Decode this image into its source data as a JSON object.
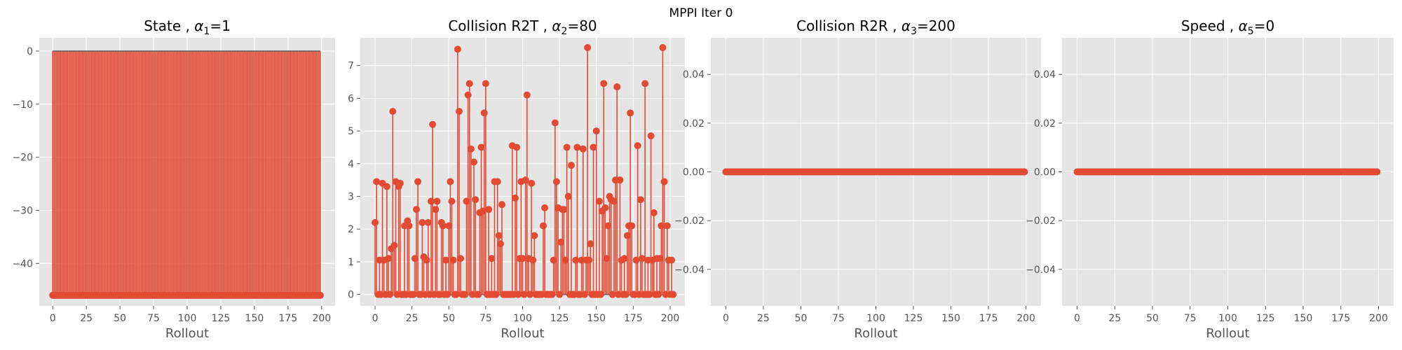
{
  "suptitle": "MPPI Iter 0",
  "colors": {
    "series": "#E24A33",
    "stem_base": "#666666",
    "axes_bg": "#E5E5E5",
    "grid": "#FFFFFF",
    "tick_text": "#555555"
  },
  "chart_data": [
    {
      "type": "stem",
      "title_name": "State , ",
      "title_alpha_sym": "α",
      "title_alpha_sub": "1",
      "title_alpha_val": "=1",
      "xlabel": "Rollout",
      "xlim": [
        -10,
        210
      ],
      "ylim": [
        -48,
        2.5
      ],
      "xticks": [
        0,
        25,
        50,
        75,
        100,
        125,
        150,
        175,
        200
      ],
      "yticks": [
        0,
        -10,
        -20,
        -30,
        -40
      ],
      "ytick_labels": [
        "0",
        "−10",
        "−20",
        "−30",
        "−40"
      ],
      "n_points": 200,
      "constant_value": -46
    },
    {
      "type": "stem",
      "title_name": "Collision R2T , ",
      "title_alpha_sym": "α",
      "title_alpha_sub": "2",
      "title_alpha_val": "=80",
      "xlabel": "Rollout",
      "xlim": [
        -10,
        210
      ],
      "ylim": [
        -0.35,
        7.85
      ],
      "xticks": [
        0,
        25,
        50,
        75,
        100,
        125,
        150,
        175,
        200
      ],
      "yticks": [
        0,
        1,
        2,
        3,
        4,
        5,
        6,
        7
      ],
      "ytick_labels": [
        "0",
        "1",
        "2",
        "3",
        "4",
        "5",
        "6",
        "7"
      ],
      "values": [
        2.2,
        3.45,
        0,
        1.05,
        0,
        3.4,
        1.05,
        0,
        3.3,
        1.1,
        0,
        1.4,
        5.6,
        1.5,
        3.45,
        0,
        3.3,
        3.4,
        0,
        0,
        2.1,
        0,
        2.25,
        2.1,
        0,
        0,
        0,
        1.1,
        2.6,
        3.45,
        0,
        0,
        2.2,
        1.15,
        0,
        1.05,
        2.2,
        0,
        2.85,
        5.2,
        0,
        2.6,
        2.85,
        0,
        0,
        2.2,
        2.1,
        0,
        1.05,
        0,
        2.1,
        3.45,
        2.85,
        1.05,
        0,
        0,
        7.5,
        5.6,
        1.1,
        0,
        0,
        0,
        2.85,
        6.1,
        6.45,
        4.45,
        0,
        4.05,
        2.9,
        0,
        0,
        2.5,
        4.5,
        2.55,
        5.55,
        6.45,
        0,
        2.6,
        0,
        1.1,
        0,
        3.45,
        0,
        3.45,
        1.8,
        1.55,
        2.75,
        0,
        0,
        0,
        0,
        0,
        0,
        4.55,
        0,
        2.95,
        4.5,
        0,
        1.1,
        3.45,
        1.1,
        0,
        3.5,
        6.1,
        1.1,
        0,
        3.4,
        1.05,
        1.8,
        0,
        0,
        0,
        0,
        0,
        2.1,
        2.65,
        0,
        0,
        0,
        0,
        0,
        1.05,
        5.25,
        3.45,
        2.65,
        0,
        1.6,
        2.6,
        2.6,
        1.05,
        4.5,
        3,
        0,
        3.95,
        0,
        0,
        1.05,
        4.5,
        0,
        0,
        1.05,
        4.45,
        0,
        1.05,
        7.55,
        1.05,
        1.55,
        0,
        4.5,
        0,
        5,
        0,
        2.85,
        0,
        2.55,
        6.45,
        2.65,
        1.1,
        2.1,
        3,
        2.9,
        0,
        2.85,
        3.5,
        6.35,
        0,
        3.5,
        1.05,
        0,
        1.1,
        0,
        1.8,
        2.1,
        5.55,
        2.1,
        0,
        0,
        1.05,
        4.55,
        0,
        2.9,
        1.1,
        0,
        6.45,
        0,
        1.05,
        0,
        4.85,
        1.05,
        2.5,
        0,
        1.1,
        0,
        1.1,
        2.1,
        7.55,
        3.45,
        0,
        2.1,
        1.05,
        0,
        1.05,
        0
      ],
      "plotted_values_note": ""
    },
    {
      "type": "stem",
      "title_name": "Collision R2R , ",
      "title_alpha_sym": "α",
      "title_alpha_sub": "3",
      "title_alpha_val": "=200",
      "xlabel": "Rollout",
      "xlim": [
        -10,
        210
      ],
      "ylim": [
        -0.055,
        0.055
      ],
      "xticks": [
        0,
        25,
        50,
        75,
        100,
        125,
        150,
        175,
        200
      ],
      "yticks": [
        0.04,
        0.02,
        0.0,
        -0.02,
        -0.04
      ],
      "ytick_labels": [
        "0.04",
        "0.02",
        "0.00",
        "−0.02",
        "−0.04"
      ],
      "n_points": 200,
      "constant_value": 0
    },
    {
      "type": "stem",
      "title_name": "Speed , ",
      "title_alpha_sym": "α",
      "title_alpha_sub": "5",
      "title_alpha_val": "=0",
      "xlabel": "Rollout",
      "xlim": [
        -10,
        210
      ],
      "ylim": [
        -0.055,
        0.055
      ],
      "xticks": [
        0,
        25,
        50,
        75,
        100,
        125,
        150,
        175,
        200
      ],
      "yticks": [
        0.04,
        0.02,
        0.0,
        -0.02,
        -0.04
      ],
      "ytick_labels": [
        "0.04",
        "0.02",
        "0.00",
        "−0.02",
        "−0.04"
      ],
      "n_points": 200,
      "constant_value": 0
    }
  ]
}
